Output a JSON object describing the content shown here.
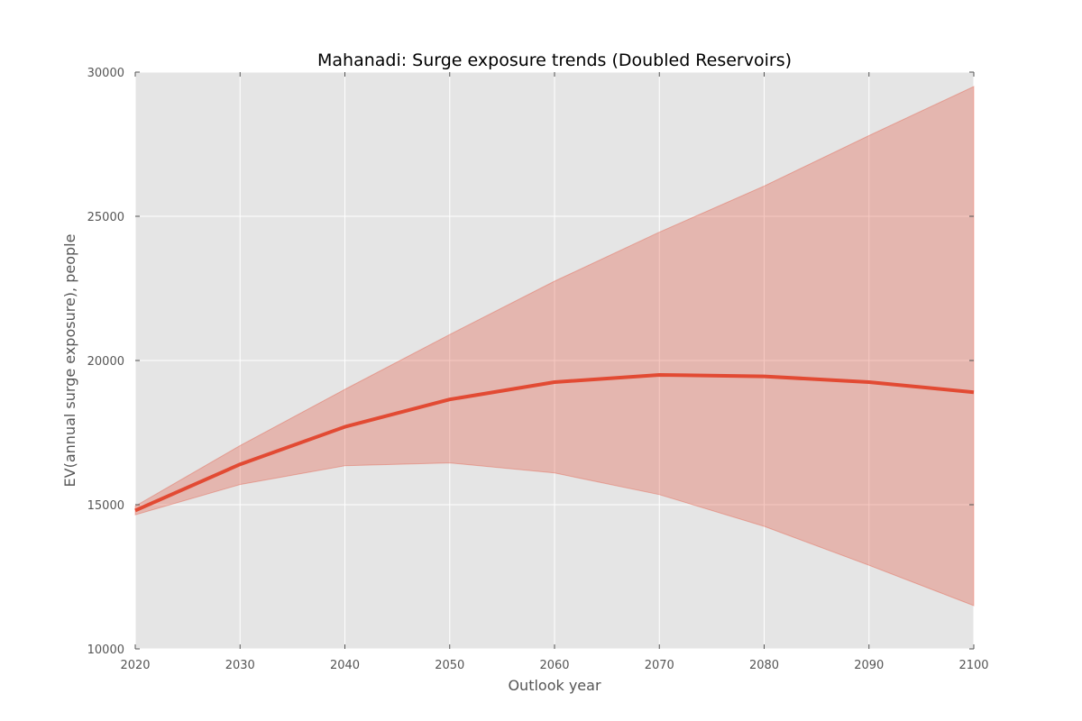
{
  "chart_data": {
    "type": "line",
    "title": "Mahanadi: Surge exposure trends (Doubled Reservoirs)",
    "xlabel": "Outlook year",
    "ylabel": "EV(annual surge exposure), people",
    "xlim": [
      2020,
      2100
    ],
    "ylim": [
      10000,
      30000
    ],
    "x_ticks": [
      "2020",
      "2030",
      "2040",
      "2050",
      "2060",
      "2070",
      "2080",
      "2090",
      "2100"
    ],
    "y_ticks": [
      "10000",
      "15000",
      "20000",
      "25000",
      "30000"
    ],
    "grid": true,
    "x": [
      2020,
      2030,
      2040,
      2050,
      2060,
      2070,
      2080,
      2090,
      2100
    ],
    "series": [
      {
        "values": [
          14800,
          16400,
          17700,
          18650,
          19250,
          19500,
          19450,
          19250,
          18900
        ],
        "band_lower": [
          14650,
          15700,
          16350,
          16450,
          16100,
          15350,
          14250,
          12900,
          11500
        ],
        "band_upper": [
          14950,
          17050,
          19000,
          20900,
          22750,
          24450,
          26050,
          27800,
          29500
        ],
        "color": "#e24a33"
      }
    ],
    "colors": {
      "plot_background": "#e5e5e5",
      "grid": "#ffffff",
      "band": "#e24a33",
      "line": "#e24a33"
    }
  }
}
